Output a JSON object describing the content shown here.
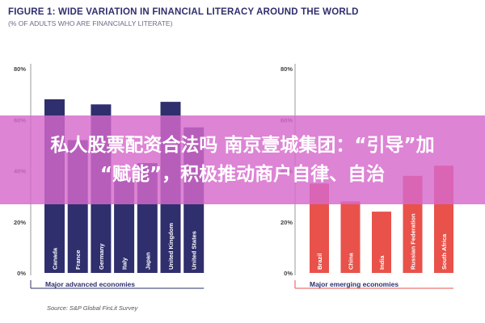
{
  "header": {
    "title": "FIGURE 1: WIDE VARIATION IN FINANCIAL LITERACY AROUND THE WORLD",
    "subtitle": "(% OF ADULTS WHO ARE FINANCIALLY LITERATE)"
  },
  "colors": {
    "advanced": "#2f2f6e",
    "emerging": "#e8524a",
    "panel_title": "#2f2f6e"
  },
  "chart_data": [
    {
      "type": "bar",
      "title": "Major advanced economies",
      "categories": [
        "Canada",
        "France",
        "Germany",
        "Italy",
        "Japan",
        "United Kingdom",
        "United States"
      ],
      "values": [
        68,
        52,
        66,
        37,
        43,
        67,
        57
      ],
      "ylim": [
        0,
        80
      ],
      "yticks": [
        "0%",
        "20%",
        "40%",
        "60%",
        "80%"
      ],
      "xlabel": "",
      "ylabel": "",
      "grid": false
    },
    {
      "type": "bar",
      "title": "Major emerging economies",
      "categories": [
        "Brazil",
        "China",
        "India",
        "Russian Federation",
        "South Africa"
      ],
      "values": [
        35,
        28,
        24,
        38,
        42
      ],
      "ylim": [
        0,
        80
      ],
      "yticks": [
        "0%",
        "20%",
        "40%",
        "60%",
        "80%"
      ],
      "xlabel": "",
      "ylabel": "",
      "grid": false
    }
  ],
  "source": "Source: S&P Global FinLit Survey",
  "overlay": {
    "line1": "私人股票配资合法吗 南京壹城集团：“引导”加",
    "line2": "“赋能”，积极推动商户自律、自治"
  }
}
